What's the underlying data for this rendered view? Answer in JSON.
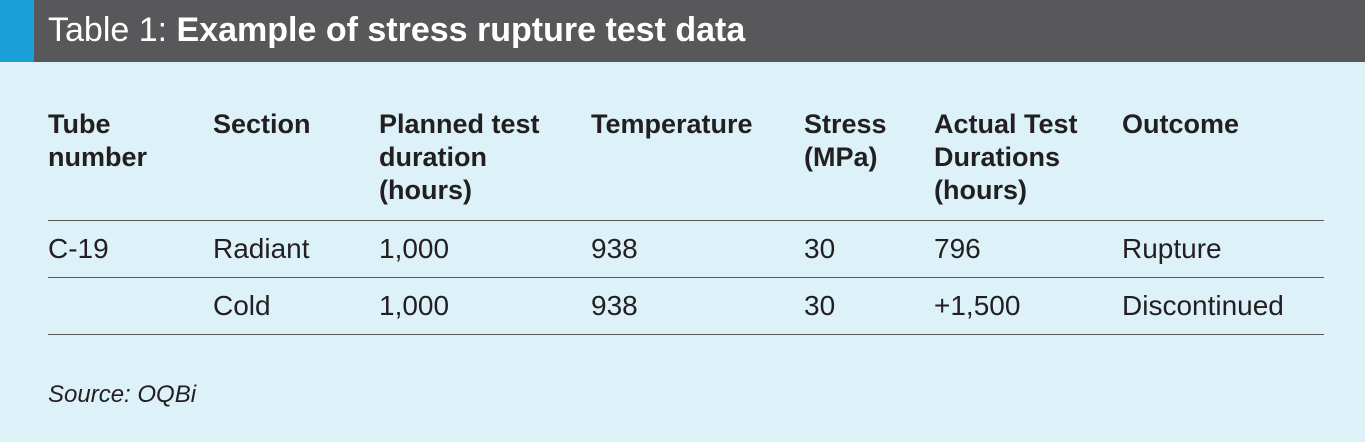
{
  "header": {
    "prefix": "Table 1: ",
    "title": "Example of stress rupture test data"
  },
  "table": {
    "columns": [
      "Tube number",
      "Section",
      "Planned test duration (hours)",
      "Temperature",
      "Stress (MPa)",
      "Actual Test Durations (hours)",
      "Outcome"
    ],
    "rows": [
      [
        "C-19",
        "Radiant",
        "1,000",
        "938",
        "30",
        "796",
        "Rupture"
      ],
      [
        "",
        "Cold",
        "1,000",
        "938",
        "30",
        "+1,500",
        "Discontinued"
      ]
    ]
  },
  "source": "Source: OQBi",
  "colors": {
    "background": "#ddf1f9",
    "header_bar": "#58585a",
    "accent": "#1aa0d8"
  }
}
